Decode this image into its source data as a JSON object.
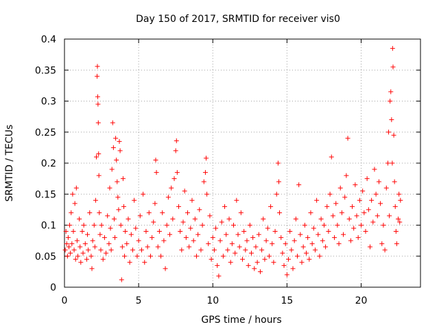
{
  "chart_data": {
    "type": "scatter",
    "title": "Day 150 of 2017, SRMTID for receiver vis0",
    "xlabel": "GPS time / hours",
    "ylabel": "SRMTID / TECUs",
    "xlim": [
      0,
      24
    ],
    "ylim": [
      0,
      0.4
    ],
    "xticks": [
      0,
      5,
      10,
      15,
      20
    ],
    "yticks": [
      0,
      0.05,
      0.1,
      0.15,
      0.2,
      0.25,
      0.3,
      0.35,
      0.4
    ],
    "xtick_labels": [
      "0",
      "5",
      "10",
      "15",
      "20"
    ],
    "ytick_labels": [
      "0",
      "0.05",
      "0.1",
      "0.15",
      "0.2",
      "0.25",
      "0.3",
      "0.35",
      "0.4"
    ],
    "grid": true,
    "marker": "+",
    "series_color": "#ff0000",
    "series": [
      {
        "name": "vis0",
        "points": [
          [
            0.05,
            0.06
          ],
          [
            0.1,
            0.09
          ],
          [
            0.15,
            0.07
          ],
          [
            0.2,
            0.05
          ],
          [
            0.25,
            0.08
          ],
          [
            0.3,
            0.065
          ],
          [
            0.35,
            0.1
          ],
          [
            0.4,
            0.055
          ],
          [
            0.45,
            0.12
          ],
          [
            0.5,
            0.07
          ],
          [
            0.55,
            0.15
          ],
          [
            0.6,
            0.09
          ],
          [
            0.65,
            0.06
          ],
          [
            0.7,
            0.135
          ],
          [
            0.75,
            0.045
          ],
          [
            0.8,
            0.16
          ],
          [
            0.85,
            0.075
          ],
          [
            0.9,
            0.05
          ],
          [
            1.0,
            0.11
          ],
          [
            1.05,
            0.065
          ],
          [
            1.1,
            0.04
          ],
          [
            1.2,
            0.09
          ],
          [
            1.25,
            0.055
          ],
          [
            1.3,
            0.1
          ],
          [
            1.4,
            0.07
          ],
          [
            1.5,
            0.045
          ],
          [
            1.55,
            0.085
          ],
          [
            1.6,
            0.06
          ],
          [
            1.7,
            0.12
          ],
          [
            1.8,
            0.05
          ],
          [
            1.85,
            0.03
          ],
          [
            1.9,
            0.075
          ],
          [
            2.0,
            0.1
          ],
          [
            2.05,
            0.065
          ],
          [
            2.1,
            0.14
          ],
          [
            2.15,
            0.21
          ],
          [
            2.2,
            0.34
          ],
          [
            2.22,
            0.356
          ],
          [
            2.24,
            0.307
          ],
          [
            2.26,
            0.295
          ],
          [
            2.28,
            0.265
          ],
          [
            2.3,
            0.215
          ],
          [
            2.32,
            0.18
          ],
          [
            2.35,
            0.12
          ],
          [
            2.4,
            0.085
          ],
          [
            2.45,
            0.06
          ],
          [
            2.5,
            0.1
          ],
          [
            2.6,
            0.045
          ],
          [
            2.7,
            0.08
          ],
          [
            2.8,
            0.055
          ],
          [
            2.9,
            0.115
          ],
          [
            3.0,
            0.07
          ],
          [
            3.05,
            0.16
          ],
          [
            3.1,
            0.095
          ],
          [
            3.15,
            0.06
          ],
          [
            3.2,
            0.19
          ],
          [
            3.25,
            0.265
          ],
          [
            3.3,
            0.225
          ],
          [
            3.35,
            0.11
          ],
          [
            3.4,
            0.08
          ],
          [
            3.45,
            0.24
          ],
          [
            3.5,
            0.205
          ],
          [
            3.55,
            0.17
          ],
          [
            3.6,
            0.145
          ],
          [
            3.65,
            0.125
          ],
          [
            3.7,
            0.235
          ],
          [
            3.75,
            0.22
          ],
          [
            3.8,
            0.1
          ],
          [
            3.85,
            0.012
          ],
          [
            3.9,
            0.065
          ],
          [
            3.95,
            0.175
          ],
          [
            4.0,
            0.13
          ],
          [
            4.05,
            0.05
          ],
          [
            4.1,
            0.09
          ],
          [
            4.2,
            0.07
          ],
          [
            4.3,
            0.11
          ],
          [
            4.4,
            0.04
          ],
          [
            4.5,
            0.085
          ],
          [
            4.6,
            0.06
          ],
          [
            4.7,
            0.14
          ],
          [
            4.8,
            0.095
          ],
          [
            4.9,
            0.05
          ],
          [
            5.0,
            0.075
          ],
          [
            5.1,
            0.115
          ],
          [
            5.2,
            0.06
          ],
          [
            5.3,
            0.15
          ],
          [
            5.4,
            0.04
          ],
          [
            5.5,
            0.09
          ],
          [
            5.6,
            0.065
          ],
          [
            5.7,
            0.12
          ],
          [
            5.8,
            0.05
          ],
          [
            5.9,
            0.08
          ],
          [
            6.0,
            0.105
          ],
          [
            6.1,
            0.135
          ],
          [
            6.15,
            0.205
          ],
          [
            6.2,
            0.185
          ],
          [
            6.3,
            0.065
          ],
          [
            6.4,
            0.09
          ],
          [
            6.5,
            0.05
          ],
          [
            6.6,
            0.12
          ],
          [
            6.7,
            0.075
          ],
          [
            6.8,
            0.03
          ],
          [
            6.9,
            0.1
          ],
          [
            7.0,
            0.145
          ],
          [
            7.1,
            0.085
          ],
          [
            7.2,
            0.16
          ],
          [
            7.3,
            0.11
          ],
          [
            7.4,
            0.175
          ],
          [
            7.5,
            0.22
          ],
          [
            7.55,
            0.236
          ],
          [
            7.6,
            0.185
          ],
          [
            7.7,
            0.13
          ],
          [
            7.8,
            0.09
          ],
          [
            7.9,
            0.06
          ],
          [
            8.0,
            0.105
          ],
          [
            8.1,
            0.155
          ],
          [
            8.2,
            0.08
          ],
          [
            8.3,
            0.12
          ],
          [
            8.4,
            0.065
          ],
          [
            8.5,
            0.095
          ],
          [
            8.6,
            0.14
          ],
          [
            8.7,
            0.075
          ],
          [
            8.8,
            0.11
          ],
          [
            8.9,
            0.05
          ],
          [
            9.0,
            0.085
          ],
          [
            9.1,
            0.125
          ],
          [
            9.2,
            0.06
          ],
          [
            9.3,
            0.1
          ],
          [
            9.4,
            0.17
          ],
          [
            9.5,
            0.185
          ],
          [
            9.55,
            0.208
          ],
          [
            9.6,
            0.15
          ],
          [
            9.7,
            0.07
          ],
          [
            9.8,
            0.115
          ],
          [
            9.9,
            0.045
          ],
          [
            10.0,
            0.08
          ],
          [
            10.1,
            0.06
          ],
          [
            10.2,
            0.095
          ],
          [
            10.3,
            0.035
          ],
          [
            10.4,
            0.018
          ],
          [
            10.5,
            0.075
          ],
          [
            10.6,
            0.105
          ],
          [
            10.7,
            0.05
          ],
          [
            10.8,
            0.13
          ],
          [
            10.9,
            0.085
          ],
          [
            11.0,
            0.06
          ],
          [
            11.1,
            0.11
          ],
          [
            11.2,
            0.04
          ],
          [
            11.3,
            0.07
          ],
          [
            11.4,
            0.1
          ],
          [
            11.5,
            0.055
          ],
          [
            11.6,
            0.14
          ],
          [
            11.7,
            0.085
          ],
          [
            11.8,
            0.065
          ],
          [
            11.9,
            0.12
          ],
          [
            12.0,
            0.045
          ],
          [
            12.1,
            0.09
          ],
          [
            12.2,
            0.06
          ],
          [
            12.3,
            0.075
          ],
          [
            12.4,
            0.035
          ],
          [
            12.5,
            0.1
          ],
          [
            12.6,
            0.055
          ],
          [
            12.7,
            0.08
          ],
          [
            12.8,
            0.03
          ],
          [
            12.9,
            0.065
          ],
          [
            13.0,
            0.04
          ],
          [
            13.1,
            0.085
          ],
          [
            13.2,
            0.025
          ],
          [
            13.3,
            0.06
          ],
          [
            13.4,
            0.11
          ],
          [
            13.5,
            0.045
          ],
          [
            13.6,
            0.075
          ],
          [
            13.7,
            0.095
          ],
          [
            13.8,
            0.05
          ],
          [
            13.9,
            0.13
          ],
          [
            14.0,
            0.07
          ],
          [
            14.1,
            0.04
          ],
          [
            14.2,
            0.09
          ],
          [
            14.3,
            0.15
          ],
          [
            14.4,
            0.2
          ],
          [
            14.45,
            0.17
          ],
          [
            14.5,
            0.12
          ],
          [
            14.6,
            0.08
          ],
          [
            14.7,
            0.055
          ],
          [
            14.8,
            0.035
          ],
          [
            14.9,
            0.07
          ],
          [
            15.0,
            0.02
          ],
          [
            15.1,
            0.045
          ],
          [
            15.2,
            0.09
          ],
          [
            15.3,
            0.06
          ],
          [
            15.4,
            0.03
          ],
          [
            15.5,
            0.075
          ],
          [
            15.6,
            0.11
          ],
          [
            15.7,
            0.05
          ],
          [
            15.8,
            0.165
          ],
          [
            15.9,
            0.085
          ],
          [
            16.0,
            0.04
          ],
          [
            16.1,
            0.065
          ],
          [
            16.2,
            0.1
          ],
          [
            16.3,
            0.055
          ],
          [
            16.4,
            0.08
          ],
          [
            16.5,
            0.045
          ],
          [
            16.6,
            0.12
          ],
          [
            16.7,
            0.07
          ],
          [
            16.8,
            0.095
          ],
          [
            16.9,
            0.06
          ],
          [
            17.0,
            0.14
          ],
          [
            17.1,
            0.085
          ],
          [
            17.2,
            0.05
          ],
          [
            17.3,
            0.11
          ],
          [
            17.4,
            0.075
          ],
          [
            17.5,
            0.1
          ],
          [
            17.6,
            0.065
          ],
          [
            17.7,
            0.13
          ],
          [
            17.8,
            0.09
          ],
          [
            17.9,
            0.15
          ],
          [
            18.0,
            0.21
          ],
          [
            18.1,
            0.115
          ],
          [
            18.2,
            0.08
          ],
          [
            18.3,
            0.135
          ],
          [
            18.4,
            0.1
          ],
          [
            18.5,
            0.07
          ],
          [
            18.6,
            0.16
          ],
          [
            18.7,
            0.12
          ],
          [
            18.8,
            0.085
          ],
          [
            18.9,
            0.145
          ],
          [
            19.0,
            0.18
          ],
          [
            19.1,
            0.24
          ],
          [
            19.2,
            0.11
          ],
          [
            19.3,
            0.075
          ],
          [
            19.4,
            0.13
          ],
          [
            19.5,
            0.095
          ],
          [
            19.6,
            0.165
          ],
          [
            19.7,
            0.115
          ],
          [
            19.8,
            0.08
          ],
          [
            19.9,
            0.14
          ],
          [
            20.0,
            0.1
          ],
          [
            20.1,
            0.155
          ],
          [
            20.2,
            0.12
          ],
          [
            20.3,
            0.09
          ],
          [
            20.4,
            0.175
          ],
          [
            20.5,
            0.125
          ],
          [
            20.6,
            0.065
          ],
          [
            20.7,
            0.14
          ],
          [
            20.8,
            0.105
          ],
          [
            20.9,
            0.19
          ],
          [
            21.0,
            0.15
          ],
          [
            21.1,
            0.115
          ],
          [
            21.2,
            0.17
          ],
          [
            21.3,
            0.135
          ],
          [
            21.4,
            0.07
          ],
          [
            21.5,
            0.1
          ],
          [
            21.6,
            0.06
          ],
          [
            21.7,
            0.16
          ],
          [
            21.8,
            0.2
          ],
          [
            21.85,
            0.25
          ],
          [
            21.9,
            0.115
          ],
          [
            21.95,
            0.3
          ],
          [
            22.0,
            0.315
          ],
          [
            22.05,
            0.27
          ],
          [
            22.1,
            0.2
          ],
          [
            22.12,
            0.385
          ],
          [
            22.15,
            0.355
          ],
          [
            22.2,
            0.245
          ],
          [
            22.25,
            0.17
          ],
          [
            22.3,
            0.13
          ],
          [
            22.35,
            0.09
          ],
          [
            22.4,
            0.07
          ],
          [
            22.5,
            0.11
          ],
          [
            22.55,
            0.15
          ],
          [
            22.6,
            0.105
          ],
          [
            22.65,
            0.14
          ]
        ]
      }
    ]
  }
}
